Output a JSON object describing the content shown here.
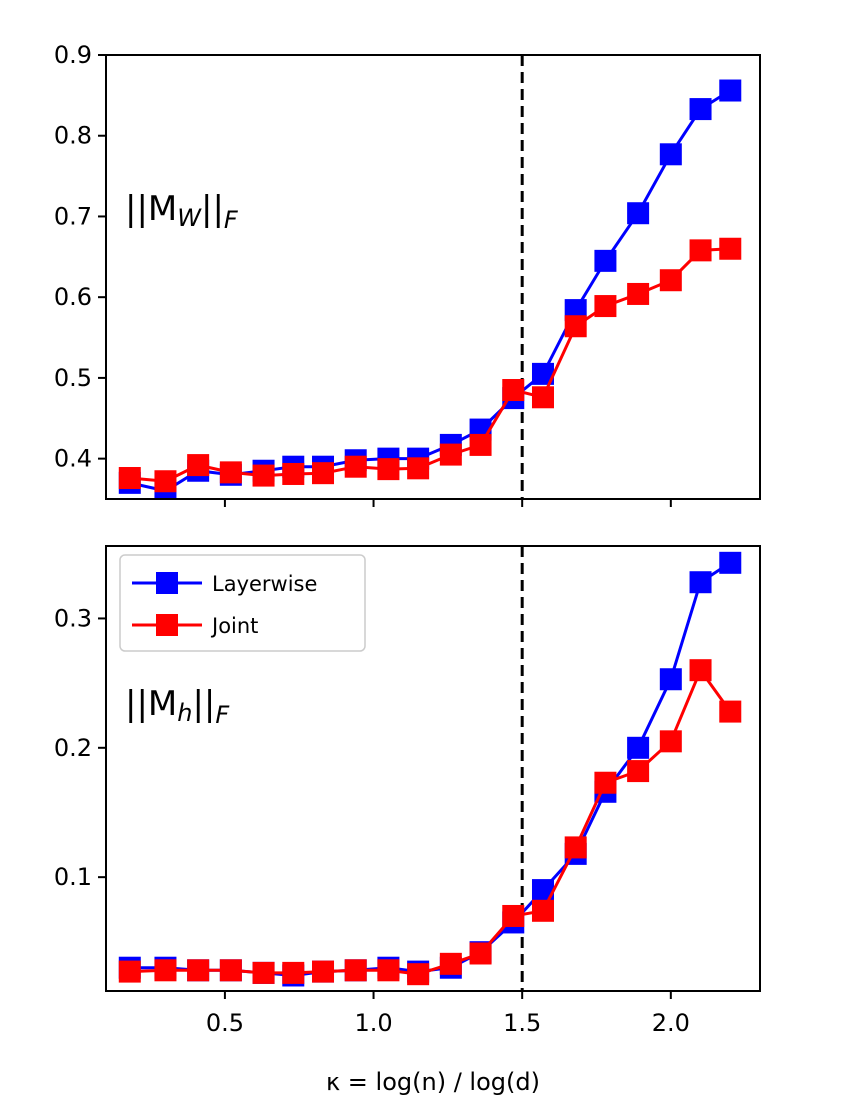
{
  "chart_data": [
    {
      "type": "line",
      "panel": "top",
      "annotation": {
        "prefix": "||M",
        "sub": "W",
        "suffix": "||",
        "sub2": "F"
      },
      "x": [
        0.18,
        0.3,
        0.41,
        0.52,
        0.63,
        0.73,
        0.83,
        0.94,
        1.05,
        1.15,
        1.26,
        1.36,
        1.47,
        1.57,
        1.68,
        1.78,
        1.89,
        2.0,
        2.1,
        2.2
      ],
      "series": [
        {
          "name": "Layerwise",
          "color": "#0000ff",
          "values": [
            0.37,
            0.36,
            0.385,
            0.38,
            0.385,
            0.39,
            0.39,
            0.398,
            0.4,
            0.4,
            0.417,
            0.436,
            0.475,
            0.505,
            0.584,
            0.645,
            0.704,
            0.777,
            0.833,
            0.856
          ]
        },
        {
          "name": "Joint",
          "color": "#ff0000",
          "values": [
            0.376,
            0.372,
            0.392,
            0.383,
            0.379,
            0.381,
            0.382,
            0.39,
            0.387,
            0.388,
            0.405,
            0.417,
            0.485,
            0.476,
            0.564,
            0.589,
            0.604,
            0.621,
            0.658,
            0.66
          ]
        }
      ],
      "xlim": [
        0.1,
        2.3
      ],
      "ylim": [
        0.35,
        0.9
      ],
      "yticks": [
        0.4,
        0.5,
        0.6,
        0.7,
        0.8,
        0.9
      ],
      "ytick_labels": [
        "0.4",
        "0.5",
        "0.6",
        "0.7",
        "0.8",
        "0.9"
      ],
      "xticks": [
        0.5,
        1.0,
        1.5,
        2.0
      ],
      "vline": 1.5
    },
    {
      "type": "line",
      "panel": "bottom",
      "annotation": {
        "prefix": "||M",
        "sub": "h",
        "suffix": "||",
        "sub2": "F"
      },
      "x": [
        0.18,
        0.3,
        0.41,
        0.52,
        0.63,
        0.73,
        0.83,
        0.94,
        1.05,
        1.15,
        1.26,
        1.36,
        1.47,
        1.57,
        1.68,
        1.78,
        1.89,
        2.0,
        2.1,
        2.2
      ],
      "series": [
        {
          "name": "Layerwise",
          "color": "#0000ff",
          "values": [
            0.03,
            0.03,
            0.028,
            0.028,
            0.026,
            0.024,
            0.027,
            0.028,
            0.03,
            0.027,
            0.03,
            0.042,
            0.065,
            0.09,
            0.118,
            0.166,
            0.2,
            0.253,
            0.328,
            0.343
          ]
        },
        {
          "name": "Joint",
          "color": "#ff0000",
          "values": [
            0.027,
            0.028,
            0.028,
            0.028,
            0.026,
            0.026,
            0.027,
            0.028,
            0.028,
            0.025,
            0.033,
            0.041,
            0.07,
            0.074,
            0.123,
            0.173,
            0.182,
            0.205,
            0.26,
            0.228
          ]
        }
      ],
      "xlim": [
        0.1,
        2.3
      ],
      "ylim": [
        0.012,
        0.356
      ],
      "yticks": [
        0.1,
        0.2,
        0.3
      ],
      "ytick_labels": [
        "0.1",
        "0.2",
        "0.3"
      ],
      "xticks": [
        0.5,
        1.0,
        1.5,
        2.0
      ],
      "xtick_labels": [
        "0.5",
        "1.0",
        "1.5",
        "2.0"
      ],
      "xlabel": "κ =  log(n) / log(d)",
      "legend": {
        "placement": "upper-left",
        "entries": [
          "Layerwise",
          "Joint"
        ]
      },
      "vline": 1.5
    }
  ]
}
